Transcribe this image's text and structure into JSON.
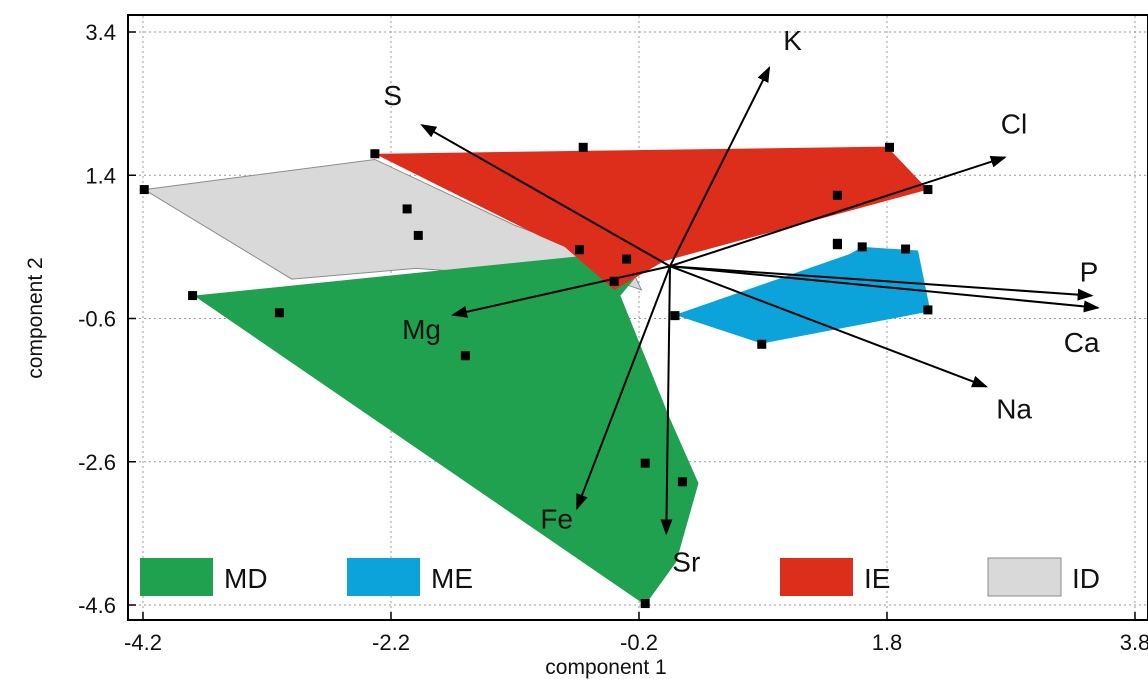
{
  "chart_data": {
    "type": "scatter",
    "xlabel": "component 1",
    "ylabel": "component 2",
    "xlim": [
      -4.2,
      3.8
    ],
    "ylim": [
      -4.6,
      3.4
    ],
    "x_ticks": [
      "-4.2",
      "-2.2",
      "-0.2",
      "1.8",
      "3.8"
    ],
    "y_ticks": [
      "3.4",
      "1.4",
      "-0.6",
      "-2.6",
      "-4.6"
    ],
    "grid": true,
    "groups": [
      {
        "name": "MD",
        "color": "#1fa150",
        "hull": [
          [
            -3.79,
            -0.28
          ],
          [
            -0.68,
            0.27
          ],
          [
            -0.4,
            0.07
          ],
          [
            -0.18,
            0.07
          ],
          [
            -0.35,
            -0.28
          ],
          [
            0.05,
            -2.0
          ],
          [
            0.28,
            -2.9
          ],
          [
            0.1,
            -4.0
          ],
          [
            -0.15,
            -4.6
          ]
        ],
        "points": [
          [
            -3.8,
            -0.28
          ],
          [
            -3.1,
            -0.52
          ],
          [
            -1.6,
            -1.12
          ],
          [
            -0.15,
            -2.62
          ],
          [
            0.15,
            -2.88
          ],
          [
            -0.15,
            -4.58
          ]
        ]
      },
      {
        "name": "ME",
        "color": "#0ba3d9",
        "hull": [
          [
            0.09,
            -0.55
          ],
          [
            1.5,
            0.3
          ],
          [
            1.6,
            0.4
          ],
          [
            2.05,
            0.35
          ],
          [
            2.15,
            -0.5
          ],
          [
            0.79,
            -0.95
          ]
        ],
        "points": [
          [
            0.09,
            -0.56
          ],
          [
            0.79,
            -0.96
          ],
          [
            1.4,
            0.43
          ],
          [
            1.6,
            0.4
          ],
          [
            1.95,
            0.37
          ],
          [
            2.13,
            -0.48
          ]
        ]
      },
      {
        "name": "IE",
        "color": "#dd2e1c",
        "hull": [
          [
            -2.33,
            1.7
          ],
          [
            1.8,
            1.8
          ],
          [
            2.13,
            1.2
          ],
          [
            0.0,
            0.2
          ],
          [
            -0.4,
            -0.2
          ],
          [
            -0.8,
            0.4
          ],
          [
            -1.0,
            0.55
          ]
        ],
        "points": [
          [
            -2.33,
            1.7
          ],
          [
            -0.65,
            1.79
          ],
          [
            1.82,
            1.79
          ],
          [
            1.4,
            1.12
          ],
          [
            2.13,
            1.2
          ],
          [
            1.4,
            0.45
          ],
          [
            -0.3,
            0.23
          ],
          [
            -0.68,
            0.36
          ]
        ]
      },
      {
        "name": "ID",
        "color": "#d9d9d9",
        "hull": [
          [
            -4.19,
            1.2
          ],
          [
            -2.33,
            1.62
          ],
          [
            -1.2,
            0.7
          ],
          [
            -0.68,
            0.36
          ],
          [
            -0.3,
            0.23
          ],
          [
            -0.18,
            -0.2
          ],
          [
            -0.35,
            -0.1
          ],
          [
            -2.0,
            0.1
          ],
          [
            -3.0,
            -0.05
          ]
        ],
        "points": [
          [
            -4.19,
            1.2
          ],
          [
            -2.07,
            0.93
          ],
          [
            -1.98,
            0.56
          ],
          [
            -0.4,
            -0.08
          ]
        ]
      }
    ],
    "loadings": [
      {
        "name": "K",
        "x": 0.85,
        "y": 2.9
      },
      {
        "name": "S",
        "x": -1.95,
        "y": 2.1
      },
      {
        "name": "Cl",
        "x": 2.75,
        "y": 1.65
      },
      {
        "name": "P",
        "x": 3.45,
        "y": -0.28
      },
      {
        "name": "Ca",
        "x": 3.5,
        "y": -0.45
      },
      {
        "name": "Na",
        "x": 2.6,
        "y": -1.55
      },
      {
        "name": "Mg",
        "x": -1.7,
        "y": -0.55
      },
      {
        "name": "Fe",
        "x": -0.7,
        "y": -3.25
      },
      {
        "name": "Sr",
        "x": 0.02,
        "y": -3.6
      }
    ],
    "loading_origin": [
      0.05,
      0.13
    ],
    "legend": {
      "placement": "bottom",
      "entries": [
        {
          "name": "MD",
          "color": "#1fa150"
        },
        {
          "name": "ME",
          "color": "#0ba3d9"
        },
        {
          "name": "IE",
          "color": "#dd2e1c"
        },
        {
          "name": "ID",
          "color": "#d9d9d9"
        }
      ]
    }
  }
}
